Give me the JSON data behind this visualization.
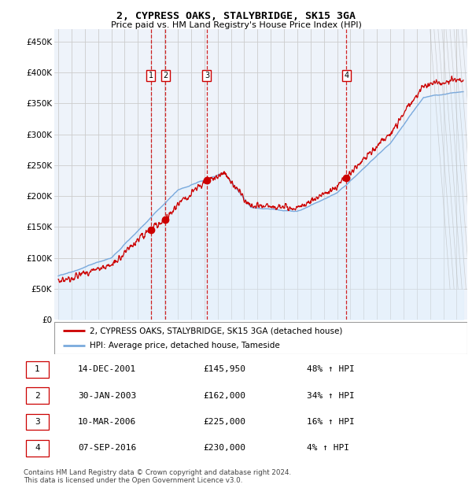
{
  "title": "2, CYPRESS OAKS, STALYBRIDGE, SK15 3GA",
  "subtitle": "Price paid vs. HM Land Registry's House Price Index (HPI)",
  "ylabel_ticks": [
    "£0",
    "£50K",
    "£100K",
    "£150K",
    "£200K",
    "£250K",
    "£300K",
    "£350K",
    "£400K",
    "£450K"
  ],
  "ytick_values": [
    0,
    50000,
    100000,
    150000,
    200000,
    250000,
    300000,
    350000,
    400000,
    450000
  ],
  "ylim": [
    0,
    470000
  ],
  "xlim_start": 1994.7,
  "xlim_end": 2025.8,
  "sale_dates": [
    2001.96,
    2003.08,
    2006.19,
    2016.69
  ],
  "sale_prices": [
    145950,
    162000,
    225000,
    230000
  ],
  "sale_labels": [
    "1",
    "2",
    "3",
    "4"
  ],
  "sale_pct_above_hpi": [
    0.48,
    0.34,
    0.16,
    0.04
  ],
  "legend_line1": "2, CYPRESS OAKS, STALYBRIDGE, SK15 3GA (detached house)",
  "legend_line2": "HPI: Average price, detached house, Tameside",
  "table_rows": [
    [
      "1",
      "14-DEC-2001",
      "£145,950",
      "48% ↑ HPI"
    ],
    [
      "2",
      "30-JAN-2003",
      "£162,000",
      "34% ↑ HPI"
    ],
    [
      "3",
      "10-MAR-2006",
      "£225,000",
      "16% ↑ HPI"
    ],
    [
      "4",
      "07-SEP-2016",
      "£230,000",
      "4% ↑ HPI"
    ]
  ],
  "footnote1": "Contains HM Land Registry data © Crown copyright and database right 2024.",
  "footnote2": "This data is licensed under the Open Government Licence v3.0.",
  "house_color": "#cc0000",
  "hpi_color": "#7aaadd",
  "hpi_fill_color": "#ddeeff",
  "label_box_color": "#cc0000",
  "vline_color": "#cc0000",
  "plot_bg": "#eef3fa"
}
